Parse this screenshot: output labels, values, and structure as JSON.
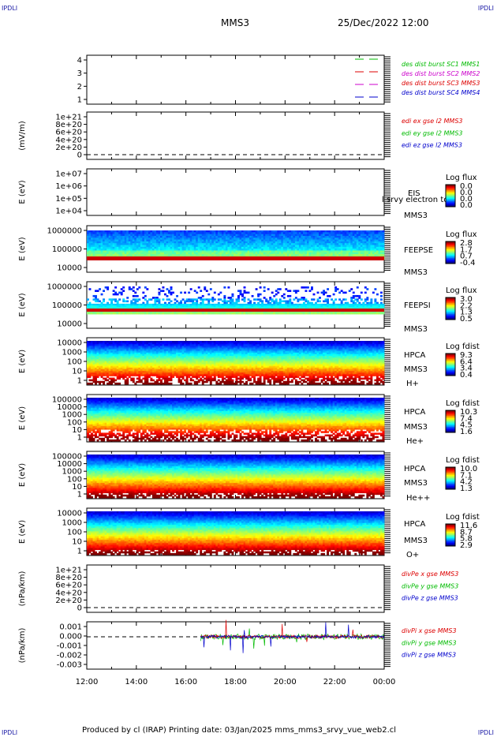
{
  "corners": {
    "top_left": "IPDLI",
    "top_right": "IPDLI",
    "bottom_left": "IPDLI",
    "bottom_right": "IPDLI"
  },
  "header": {
    "spacecraft": "MMS3",
    "datetime": "25/Dec/2022 12:00"
  },
  "footer": {
    "text": "Produced by cl (IRAP)   Printing date: 03/Jan/2025   mms_mms3_srvy_vue_web2.cl"
  },
  "colors": {
    "red": "#dd0000",
    "green": "#00bb00",
    "blue": "#0000cc",
    "magenta": "#cc00cc"
  },
  "chart_data": [
    {
      "type": "line",
      "panel": "burst-indicator",
      "yticks": [
        "4",
        "3",
        "2",
        "1"
      ],
      "ylim": [
        0.5,
        4.5
      ],
      "xlabel": "",
      "ylabel": "",
      "legend": [
        {
          "name": "des dist burst SC1 MMS1",
          "color": "#00bb00"
        },
        {
          "name": "des dist burst SC2 MMS2",
          "color": "#cc00cc"
        },
        {
          "name": "des dist burst SC3 MMS3",
          "color": "#dd0000"
        },
        {
          "name": "des dist burst SC4 MMS4",
          "color": "#0000cc"
        }
      ],
      "series": []
    },
    {
      "type": "line",
      "panel": "edi-e-field",
      "ylabel": "(mV/m)",
      "yticks": [
        "1e+21",
        "8e+20",
        "6e+20",
        "4e+20",
        "2e+20",
        "0"
      ],
      "legend": [
        {
          "name": "edi ex gse l2 MMS3",
          "color": "#dd0000"
        },
        {
          "name": "edi ey gse l2 MMS3",
          "color": "#00bb00"
        },
        {
          "name": "edi ez gse l2 MMS3",
          "color": "#0000cc"
        }
      ],
      "series": []
    },
    {
      "type": "heatmap",
      "panel": "eis",
      "ylabel": "E (eV)",
      "yticks": [
        "1e+07",
        "1e+06",
        "1e+05",
        "1e+04"
      ],
      "labels": [
        "EIS",
        "MMS3"
      ],
      "overlay_text": "l srvy electron to",
      "colorbar": {
        "title": "Log flux",
        "ticks": [
          "0.0",
          "0.0",
          "0.0",
          "0.0"
        ]
      }
    },
    {
      "type": "heatmap",
      "panel": "feeps-e",
      "ylabel": "E (eV)",
      "yticks": [
        "1000000",
        "100000",
        "10000"
      ],
      "labels": [
        "FEEPSE",
        "MMS3"
      ],
      "colorbar": {
        "title": "Log flux",
        "ticks": [
          "2.8",
          "1.7",
          "0.7",
          "-0.4"
        ]
      }
    },
    {
      "type": "heatmap",
      "panel": "feeps-i",
      "ylabel": "E (eV)",
      "yticks": [
        "1000000",
        "100000",
        "10000"
      ],
      "labels": [
        "FEEPSI",
        "MMS3"
      ],
      "colorbar": {
        "title": "Log flux",
        "ticks": [
          "3.0",
          "2.2",
          "1.3",
          "0.5"
        ]
      }
    },
    {
      "type": "heatmap",
      "panel": "hpca-h",
      "ylabel": "E (eV)",
      "yticks": [
        "10000",
        "1000",
        "100",
        "10",
        "1"
      ],
      "labels": [
        "HPCA",
        "MMS3",
        "H+"
      ],
      "colorbar": {
        "title": "Log fdist",
        "ticks": [
          "9.3",
          "6.4",
          "3.4",
          "0.4"
        ]
      }
    },
    {
      "type": "heatmap",
      "panel": "hpca-he",
      "ylabel": "E (eV)",
      "yticks": [
        "100000",
        "10000",
        "1000",
        "100",
        "10",
        "1"
      ],
      "labels": [
        "HPCA",
        "MMS3",
        "He+"
      ],
      "colorbar": {
        "title": "Log fdist",
        "ticks": [
          "10.3",
          "7.4",
          "4.5",
          "1.6"
        ]
      }
    },
    {
      "type": "heatmap",
      "panel": "hpca-hepp",
      "ylabel": "E (eV)",
      "yticks": [
        "100000",
        "10000",
        "1000",
        "100",
        "10",
        "1"
      ],
      "labels": [
        "HPCA",
        "MMS3",
        "He++"
      ],
      "colorbar": {
        "title": "Log fdist",
        "ticks": [
          "10.0",
          "7.1",
          "4.2",
          "1.3"
        ]
      }
    },
    {
      "type": "heatmap",
      "panel": "hpca-o",
      "ylabel": "E (eV)",
      "yticks": [
        "10000",
        "1000",
        "100",
        "10",
        "1"
      ],
      "labels": [
        "HPCA",
        "MMS3",
        "O+"
      ],
      "colorbar": {
        "title": "Log fdist",
        "ticks": [
          "11.6",
          "8.7",
          "5.8",
          "2.9"
        ]
      }
    },
    {
      "type": "line",
      "panel": "divpe",
      "ylabel": "(nPa/km)",
      "yticks": [
        "1e+21",
        "8e+20",
        "6e+20",
        "4e+20",
        "2e+20",
        "0"
      ],
      "legend": [
        {
          "name": "divPe x gse MMS3",
          "color": "#dd0000"
        },
        {
          "name": "divPe y gse MMS3",
          "color": "#00bb00"
        },
        {
          "name": "divPe z gse MMS3",
          "color": "#0000cc"
        }
      ],
      "series": []
    },
    {
      "type": "line",
      "panel": "divpi",
      "ylabel": "(nPa/km)",
      "yticks": [
        "0.001",
        "0.000",
        "-0.001",
        "-0.002",
        "-0.003"
      ],
      "ylim": [
        -0.0035,
        0.0015
      ],
      "data_start_hour": 16.6,
      "legend": [
        {
          "name": "divPi x gse MMS3",
          "color": "#dd0000"
        },
        {
          "name": "divPi y gse MMS3",
          "color": "#00bb00"
        },
        {
          "name": "divPi z gse MMS3",
          "color": "#0000cc"
        }
      ]
    }
  ],
  "xaxis": {
    "ticks": [
      "12:00",
      "14:00",
      "16:00",
      "18:00",
      "20:00",
      "22:00",
      "00:00"
    ]
  }
}
